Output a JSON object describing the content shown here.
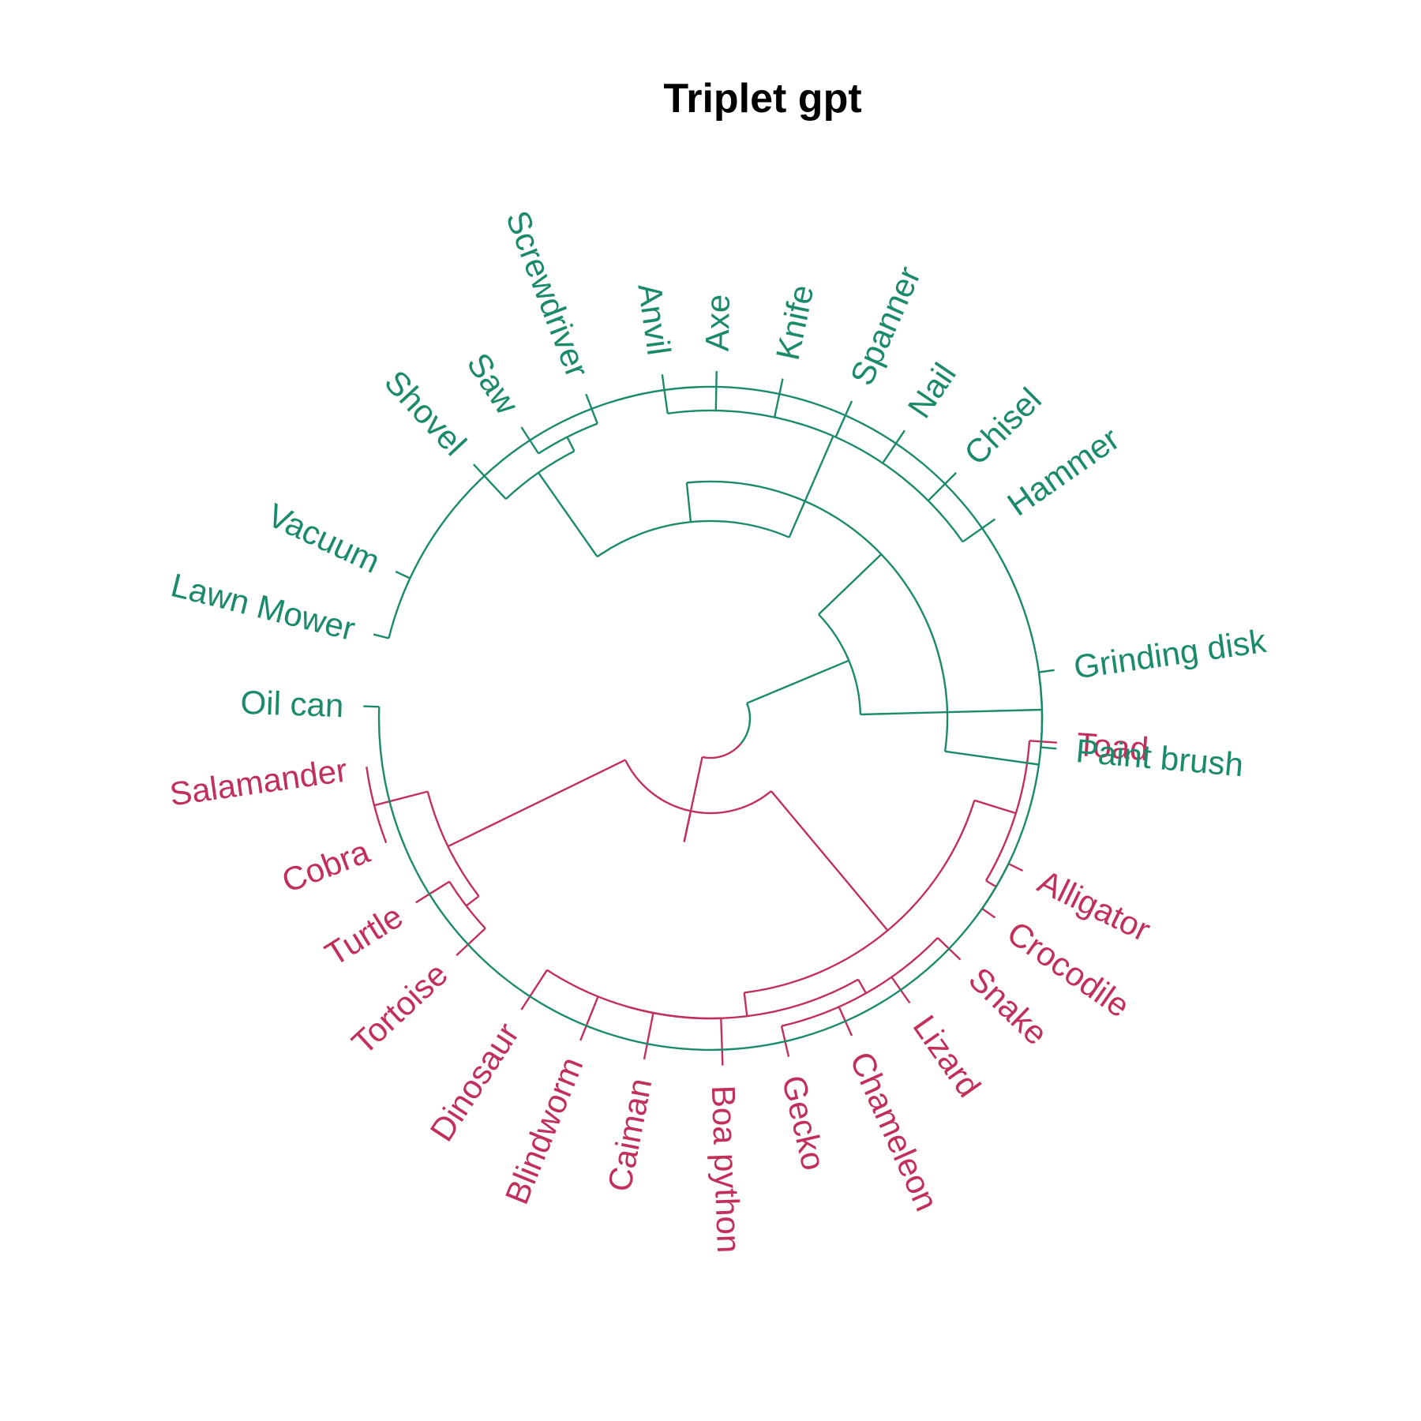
{
  "title": "Triplet gpt",
  "colors": {
    "tools": "#1b8a6b",
    "animals": "#c0305a"
  },
  "leaves": [
    {
      "id": "toad",
      "label": "Toad",
      "group": "animals"
    },
    {
      "id": "alligator",
      "label": "Alligator",
      "group": "animals"
    },
    {
      "id": "crocodile",
      "label": "Crocodile",
      "group": "animals"
    },
    {
      "id": "snake",
      "label": "Snake",
      "group": "animals"
    },
    {
      "id": "lizard",
      "label": "Lizard",
      "group": "animals"
    },
    {
      "id": "chameleon",
      "label": "Chameleon",
      "group": "animals"
    },
    {
      "id": "gecko",
      "label": "Gecko",
      "group": "animals"
    },
    {
      "id": "boa-python",
      "label": "Boa python",
      "group": "animals"
    },
    {
      "id": "caiman",
      "label": "Caiman",
      "group": "animals"
    },
    {
      "id": "blindworm",
      "label": "Blindworm",
      "group": "animals"
    },
    {
      "id": "dinosaur",
      "label": "Dinosaur",
      "group": "animals"
    },
    {
      "id": "tortoise",
      "label": "Tortoise",
      "group": "animals"
    },
    {
      "id": "turtle",
      "label": "Turtle",
      "group": "animals"
    },
    {
      "id": "cobra",
      "label": "Cobra",
      "group": "animals"
    },
    {
      "id": "salamander",
      "label": "Salamander",
      "group": "animals"
    },
    {
      "id": "oil-can",
      "label": "Oil can",
      "group": "tools"
    },
    {
      "id": "lawn-mower",
      "label": "Lawn Mower",
      "group": "tools"
    },
    {
      "id": "vacuum",
      "label": "Vacuum",
      "group": "tools"
    },
    {
      "id": "shovel",
      "label": "Shovel",
      "group": "tools"
    },
    {
      "id": "saw",
      "label": "Saw",
      "group": "tools"
    },
    {
      "id": "screwdriver",
      "label": "Screwdriver",
      "group": "tools"
    },
    {
      "id": "anvil",
      "label": "Anvil",
      "group": "tools"
    },
    {
      "id": "axe",
      "label": "Axe",
      "group": "tools"
    },
    {
      "id": "knife",
      "label": "Knife",
      "group": "tools"
    },
    {
      "id": "spanner",
      "label": "Spanner",
      "group": "tools"
    },
    {
      "id": "nail",
      "label": "Nail",
      "group": "tools"
    },
    {
      "id": "chisel",
      "label": "Chisel",
      "group": "tools"
    },
    {
      "id": "hammer",
      "label": "Hammer",
      "group": "tools"
    },
    {
      "id": "grinding-disk",
      "label": "Grinding disk",
      "group": "tools"
    },
    {
      "id": "paint-brush",
      "label": "Paint brush",
      "group": "tools"
    }
  ]
}
